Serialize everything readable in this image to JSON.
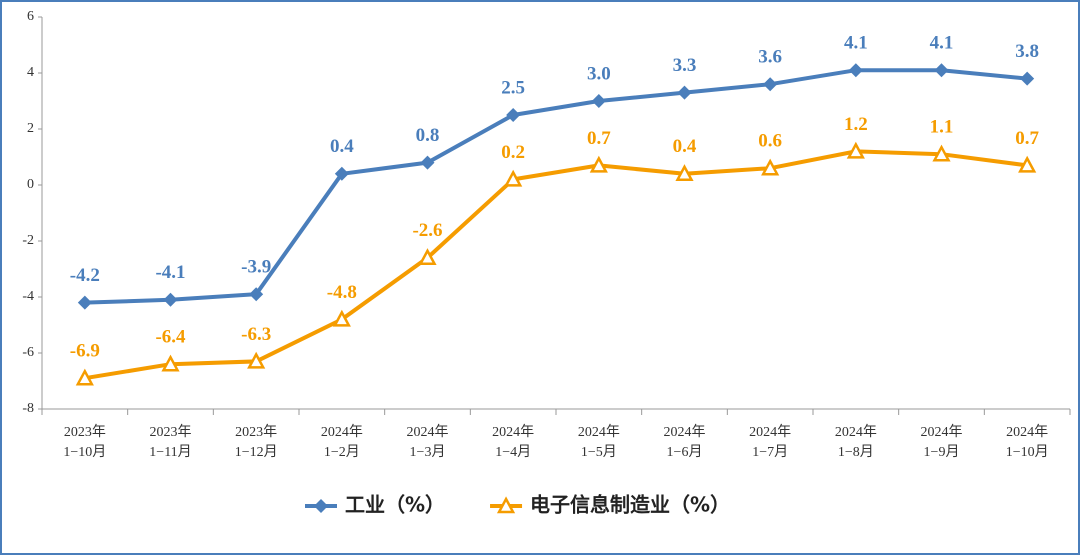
{
  "chart_data": {
    "type": "line",
    "categories": [
      [
        "2023年",
        "1−10月"
      ],
      [
        "2023年",
        "1−11月"
      ],
      [
        "2023年",
        "1−12月"
      ],
      [
        "2024年",
        "1−2月"
      ],
      [
        "2024年",
        "1−3月"
      ],
      [
        "2024年",
        "1−4月"
      ],
      [
        "2024年",
        "1−5月"
      ],
      [
        "2024年",
        "1−6月"
      ],
      [
        "2024年",
        "1−7月"
      ],
      [
        "2024年",
        "1−8月"
      ],
      [
        "2024年",
        "1−9月"
      ],
      [
        "2024年",
        "1−10月"
      ]
    ],
    "series": [
      {
        "name": "工业（%）",
        "color": "#4a7ebb",
        "marker": "diamond",
        "values": [
          -4.2,
          -4.1,
          -3.9,
          0.4,
          0.8,
          2.5,
          3.0,
          3.3,
          3.6,
          4.1,
          4.1,
          3.8
        ],
        "value_labels": [
          "-4.2",
          "-4.1",
          "-3.9",
          "0.4",
          "0.8",
          "2.5",
          "3.0",
          "3.3",
          "3.6",
          "4.1",
          "4.1",
          "3.8"
        ]
      },
      {
        "name": "电子信息制造业（%）",
        "color": "#f59c00",
        "marker": "triangle",
        "values": [
          -6.9,
          -6.4,
          -6.3,
          -4.8,
          -2.6,
          0.2,
          0.7,
          0.4,
          0.6,
          1.2,
          1.1,
          0.7
        ]
      }
    ],
    "ylim": [
      -8,
      6
    ],
    "yticks": [
      -8,
      -6,
      -4,
      -2,
      0,
      2,
      4,
      6
    ],
    "grid": false,
    "legend": "bottom"
  }
}
